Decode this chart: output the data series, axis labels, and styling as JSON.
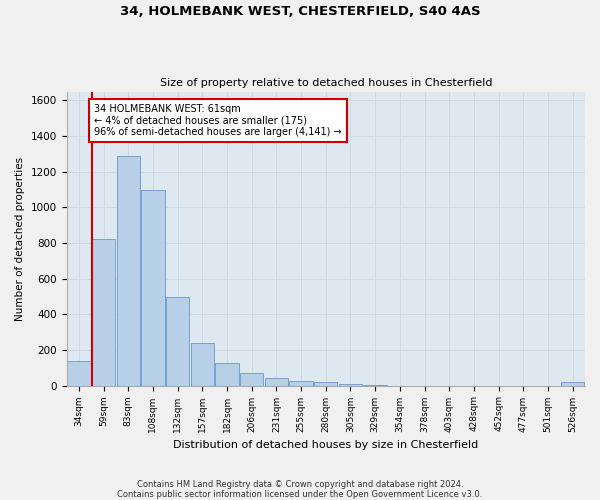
{
  "title_line1": "34, HOLMEBANK WEST, CHESTERFIELD, S40 4AS",
  "title_line2": "Size of property relative to detached houses in Chesterfield",
  "xlabel": "Distribution of detached houses by size in Chesterfield",
  "ylabel": "Number of detached properties",
  "footnote": "Contains HM Land Registry data © Crown copyright and database right 2024.\nContains public sector information licensed under the Open Government Licence v3.0.",
  "bin_labels": [
    "34sqm",
    "59sqm",
    "83sqm",
    "108sqm",
    "132sqm",
    "157sqm",
    "182sqm",
    "206sqm",
    "231sqm",
    "255sqm",
    "280sqm",
    "305sqm",
    "329sqm",
    "354sqm",
    "378sqm",
    "403sqm",
    "428sqm",
    "452sqm",
    "477sqm",
    "501sqm",
    "526sqm"
  ],
  "bar_values": [
    140,
    820,
    1290,
    1095,
    495,
    238,
    128,
    68,
    42,
    28,
    18,
    8,
    2,
    0,
    0,
    0,
    0,
    0,
    0,
    0,
    18
  ],
  "bar_color": "#b8cfe8",
  "bar_edge_color": "#6699cc",
  "ylim": [
    0,
    1650
  ],
  "yticks": [
    0,
    200,
    400,
    600,
    800,
    1000,
    1200,
    1400,
    1600
  ],
  "annotation_text": "34 HOLMEBANK WEST: 61sqm\n← 4% of detached houses are smaller (175)\n96% of semi-detached houses are larger (4,141) →",
  "annotation_box_color": "#ffffff",
  "annotation_box_edge": "#cc0000",
  "vline_color": "#cc0000",
  "grid_color": "#d0d8e0",
  "bg_color": "#dde8f0",
  "fig_bg_color": "#f0f0f0"
}
